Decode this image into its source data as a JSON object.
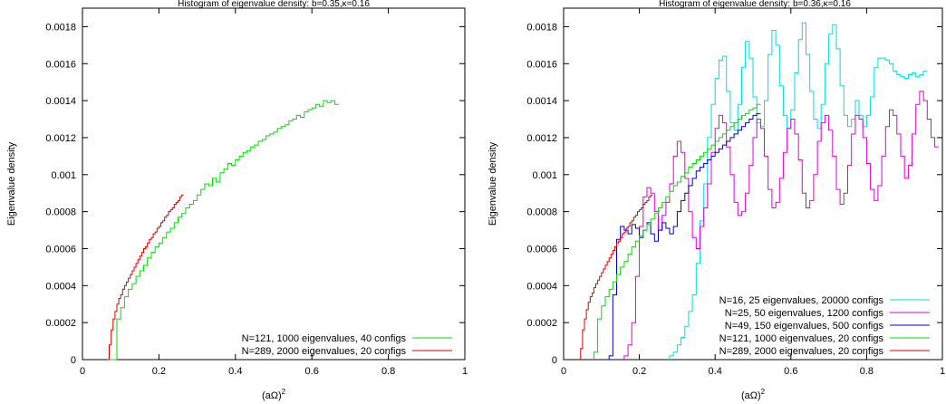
{
  "chart_data": [
    {
      "type": "histogram",
      "title": "Histogram of eigenvalue density: b=0.35,κ=0.16",
      "xlabel": "(aΩ)",
      "xlabel_superscript": "2",
      "ylabel": "Eigenvalue density",
      "xlim": [
        0,
        1
      ],
      "ylim": [
        0,
        0.0019
      ],
      "xticks": [
        "0",
        "0.2",
        "0.4",
        "0.6",
        "0.8",
        "1"
      ],
      "yticks": [
        "0",
        "0.0002",
        "0.0004",
        "0.0006",
        "0.0008",
        "0.001",
        "0.0012",
        "0.0014",
        "0.0016",
        "0.0018"
      ],
      "legend_position": "bottom-right",
      "series": [
        {
          "name": "N=121, 1000 eigenvalues, 40 configs",
          "color": "#00dd00",
          "bin_width": 0.01,
          "x_start": 0.07,
          "values": [
            0,
            0,
            0.00022,
            0.00028,
            0.00034,
            0.00038,
            0.00041,
            0.00045,
            0.00048,
            0.00051,
            0.00055,
            0.00058,
            0.00061,
            0.00063,
            0.00066,
            0.00069,
            0.00071,
            0.00074,
            0.00077,
            0.00079,
            0.00082,
            0.00084,
            0.00086,
            0.00089,
            0.00092,
            0.00095,
            0.00094,
            0.00098,
            0.00096,
            0.00101,
            0.00103,
            0.00106,
            0.00105,
            0.00108,
            0.0011,
            0.00112,
            0.00113,
            0.00115,
            0.00116,
            0.00118,
            0.00119,
            0.00121,
            0.00122,
            0.00123,
            0.00125,
            0.00126,
            0.00127,
            0.00129,
            0.0013,
            0.00132,
            0.00131,
            0.00134,
            0.00135,
            0.00136,
            0.00138,
            0.00137,
            0.0014,
            0.00139,
            0.0014,
            0.00138
          ]
        },
        {
          "name": "N=289, 2000 eigenvalues, 20 configs",
          "color": "#dd0000",
          "bin_width": 0.005,
          "x_start": 0.065,
          "values": [
            0,
            8e-05,
            0.00016,
            0.00022,
            0.00026,
            0.0003,
            0.00033,
            0.00035,
            0.00038,
            0.0004,
            0.00042,
            0.00044,
            0.00046,
            0.00048,
            0.0005,
            0.00052,
            0.00054,
            0.00056,
            0.00058,
            0.0006,
            0.00061,
            0.00063,
            0.00065,
            0.00066,
            0.00068,
            0.00069,
            0.00071,
            0.00072,
            0.00074,
            0.00075,
            0.00077,
            0.00078,
            0.0008,
            0.00081,
            0.00082,
            0.00084,
            0.00085,
            0.00086,
            0.00088,
            0.00089
          ]
        }
      ]
    },
    {
      "type": "histogram",
      "title": "Histogram of eigenvalue density: b=0.36,κ=0.16",
      "xlabel": "(aΩ)",
      "xlabel_superscript": "2",
      "ylabel": "Eigenvalue density",
      "xlim": [
        0,
        1
      ],
      "ylim": [
        0,
        0.0019
      ],
      "xticks": [
        "0",
        "0.2",
        "0.4",
        "0.6",
        "0.8",
        "1"
      ],
      "yticks": [
        "0",
        "0.0002",
        "0.0004",
        "0.0006",
        "0.0008",
        "0.001",
        "0.0012",
        "0.0014",
        "0.0016",
        "0.0018"
      ],
      "legend_position": "bottom-right",
      "series": [
        {
          "name": "N=16, 25 eigenvalues, 20000 configs",
          "color": "#00dddd",
          "bin_width": 0.01,
          "x_start": 0.28,
          "values": [
            2e-05,
            4e-05,
            8e-05,
            0.00012,
            0.00018,
            0.00026,
            0.00035,
            0.00052,
            0.00075,
            0.00095,
            0.0012,
            0.00138,
            0.00152,
            0.00162,
            0.00164,
            0.00145,
            0.00128,
            0.00124,
            0.00138,
            0.00158,
            0.00172,
            0.00163,
            0.00142,
            0.00128,
            0.00126,
            0.0014,
            0.00165,
            0.00178,
            0.0017,
            0.00148,
            0.00132,
            0.00125,
            0.00135,
            0.00155,
            0.00173,
            0.00182,
            0.00165,
            0.00145,
            0.0013,
            0.00125,
            0.00138,
            0.0016,
            0.00176,
            0.00181,
            0.00168,
            0.00148,
            0.00132,
            0.00126,
            0.0013,
            0.0014,
            0.00132,
            0.00126,
            0.00132,
            0.00142,
            0.00158,
            0.00163,
            0.00163,
            0.00162,
            0.0016,
            0.00156,
            0.00154,
            0.00153,
            0.00152,
            0.00154,
            0.00155,
            0.00153,
            0.00154,
            0.00156
          ]
        },
        {
          "name": "N=25, 50 eigenvalues, 1200 configs",
          "color": "#dd00dd",
          "bin_width": 0.01,
          "x_start": 0.16,
          "values": [
            2e-05,
            8e-05,
            0.0002,
            0.00045,
            0.00072,
            0.00088,
            0.00093,
            0.0009,
            0.0008,
            0.0007,
            0.00078,
            0.00085,
            0.00095,
            0.0011,
            0.00118,
            0.00112,
            0.00098,
            0.0008,
            0.00066,
            0.0006,
            0.00072,
            0.00082,
            0.00095,
            0.00112,
            0.00125,
            0.00132,
            0.00128,
            0.00115,
            0.001,
            0.00085,
            0.00078,
            0.0008,
            0.0009,
            0.00105,
            0.0012,
            0.0013,
            0.00125,
            0.0011,
            0.00092,
            0.00082,
            0.00085,
            0.00098,
            0.00112,
            0.00125,
            0.0013,
            0.00122,
            0.00108,
            0.0009,
            0.00082,
            0.00086,
            0.001,
            0.00118,
            0.00128,
            0.00132,
            0.00124,
            0.0011,
            0.00092,
            0.00084,
            0.0009,
            0.00105,
            0.00122,
            0.00132,
            0.0013,
            0.0012,
            0.00106,
            0.00092,
            0.00086,
            0.00094,
            0.0011,
            0.00126,
            0.00135,
            0.00132,
            0.00122,
            0.0011,
            0.00098,
            0.00105,
            0.00122,
            0.00138,
            0.00145,
            0.0014,
            0.0013,
            0.0012,
            0.00115
          ]
        },
        {
          "name": "N=49, 150 eigenvalues, 500 configs",
          "color": "#0000cc",
          "bin_width": 0.01,
          "x_start": 0.12,
          "values": [
            2e-05,
            0.00035,
            0.00065,
            0.00072,
            0.0007,
            0.00068,
            0.00073,
            0.00071,
            0.00066,
            0.0007,
            0.00074,
            0.00068,
            0.00064,
            0.0007,
            0.00074,
            0.00071,
            0.00068,
            0.00072,
            0.0008,
            0.00086,
            0.0009,
            0.00094,
            0.00098,
            0.00102,
            0.00104,
            0.00106,
            0.00108,
            0.0011,
            0.00112,
            0.00114,
            0.00116,
            0.00118,
            0.0012,
            0.00122,
            0.00124,
            0.00126,
            0.00128,
            0.0013,
            0.00132,
            0.00133
          ]
        },
        {
          "name": "N=121, 1000 eigenvalues, 20 configs",
          "color": "#00dd00",
          "bin_width": 0.01,
          "x_start": 0.08,
          "values": [
            4e-05,
            0.00022,
            0.00029,
            0.00034,
            0.00038,
            0.00042,
            0.00046,
            0.0005,
            0.00053,
            0.00057,
            0.00061,
            0.00064,
            0.00067,
            0.0007,
            0.00073,
            0.00076,
            0.00079,
            0.00082,
            0.00085,
            0.00088,
            0.00091,
            0.00094,
            0.00096,
            0.00099,
            0.00101,
            0.00104,
            0.00106,
            0.00108,
            0.0011,
            0.00112,
            0.00114,
            0.00116,
            0.00118,
            0.0012,
            0.00122,
            0.00124,
            0.00126,
            0.00128,
            0.0013,
            0.00132,
            0.00133,
            0.00135,
            0.00136,
            0.00138
          ]
        },
        {
          "name": "N=289, 2000 eigenvalues, 20 configs",
          "color": "#dd0000",
          "bin_width": 0.005,
          "x_start": 0.045,
          "values": [
            6e-05,
            0.00016,
            0.00022,
            0.00027,
            0.00031,
            0.00034,
            0.00036,
            0.00039,
            0.00041,
            0.00043,
            0.00045,
            0.00047,
            0.00049,
            0.00051,
            0.00053,
            0.00055,
            0.00057,
            0.00059,
            0.00061,
            0.00063,
            0.00064,
            0.00066,
            0.00068,
            0.00069,
            0.00071,
            0.00072,
            0.00074,
            0.00075,
            0.00077,
            0.00078,
            0.0008,
            0.00081,
            0.00082,
            0.00084,
            0.00085,
            0.00086,
            0.00088,
            0.00089
          ]
        }
      ]
    }
  ]
}
